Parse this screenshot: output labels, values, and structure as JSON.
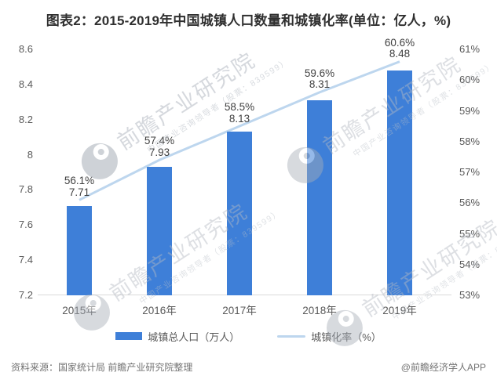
{
  "title": "图表2：2015-2019年中国城镇人口数量和城镇化率(单位：亿人，%)",
  "chart_data": {
    "type": "bar+line",
    "categories": [
      "2015年",
      "2016年",
      "2017年",
      "2018年",
      "2019年"
    ],
    "series": [
      {
        "name": "城镇总人口（万人）",
        "type": "bar",
        "axis": "left",
        "values": [
          7.71,
          7.93,
          8.13,
          8.31,
          8.48
        ],
        "labels": [
          "7.71",
          "7.93",
          "8.13",
          "8.31",
          "8.48"
        ],
        "color": "#3E7FD8"
      },
      {
        "name": "城镇化率（%）",
        "type": "line",
        "axis": "right",
        "values": [
          56.1,
          57.4,
          58.5,
          59.6,
          60.6
        ],
        "labels": [
          "56.1%",
          "57.4%",
          "58.5%",
          "59.6%",
          "60.6%"
        ],
        "color": "#BDD6EE"
      }
    ],
    "left_axis": {
      "min": 7.2,
      "max": 8.6,
      "step": 0.2,
      "tick_labels": [
        "8.6",
        "8.4",
        "8.2",
        "8",
        "7.8",
        "7.6",
        "7.4",
        "7.2"
      ]
    },
    "right_axis": {
      "min": 53,
      "max": 61,
      "step": 1,
      "tick_labels": [
        "61%",
        "60%",
        "59%",
        "58%",
        "57%",
        "56%",
        "55%",
        "54%",
        "53%"
      ]
    },
    "grid": false,
    "legend_position": "bottom"
  },
  "legend": {
    "bar_label": "城镇总人口（万人）",
    "line_label": "城镇化率（%）"
  },
  "watermark": {
    "brand": "前瞻产业研究院",
    "tagline": "中国产业咨询领导者（股票：839599）"
  },
  "footer": {
    "source": "资料来源：国家统计局 前瞻产业研究院整理",
    "credit": "@前瞻经济学人APP"
  },
  "colors": {
    "bar": "#3E7FD8",
    "line": "#BDD6EE",
    "axis_text": "#595959",
    "label_text": "#404040",
    "title_text": "#303030",
    "footer_text": "#737373",
    "axis_line": "#D9D9D9",
    "watermark": "#AEB4BE"
  }
}
